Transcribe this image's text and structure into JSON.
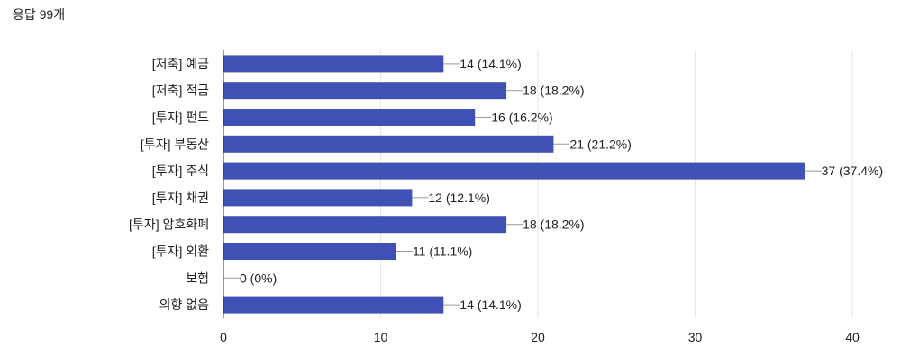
{
  "header": {
    "response_count": "응답 99개"
  },
  "colors": {
    "bar": "#3f51b5",
    "grid": "#e6e6e6",
    "axis": "#333333",
    "leader": "#999999"
  },
  "chart_data": {
    "type": "bar",
    "orientation": "horizontal",
    "categories": [
      "[저축] 예금",
      "[저축] 적금",
      "[투자] 펀드",
      "[투자] 부동산",
      "[투자] 주식",
      "[투자] 채권",
      "[투자] 암호화폐",
      "[투자] 외환",
      "보험",
      "의향 없음"
    ],
    "values": [
      14,
      18,
      16,
      21,
      37,
      12,
      18,
      11,
      0,
      14
    ],
    "data_labels": [
      "14 (14.1%)",
      "18 (18.2%)",
      "16 (16.2%)",
      "21 (21.2%)",
      "37 (37.4%)",
      "12 (12.1%)",
      "18 (18.2%)",
      "11 (11.1%)",
      "0 (0%)",
      "14 (14.1%)"
    ],
    "xlim": [
      0,
      40
    ],
    "xticks": [
      0,
      10,
      20,
      30,
      40
    ],
    "xtick_labels": [
      "0",
      "10",
      "20",
      "30",
      "40"
    ],
    "grid": true,
    "legend": "none"
  }
}
